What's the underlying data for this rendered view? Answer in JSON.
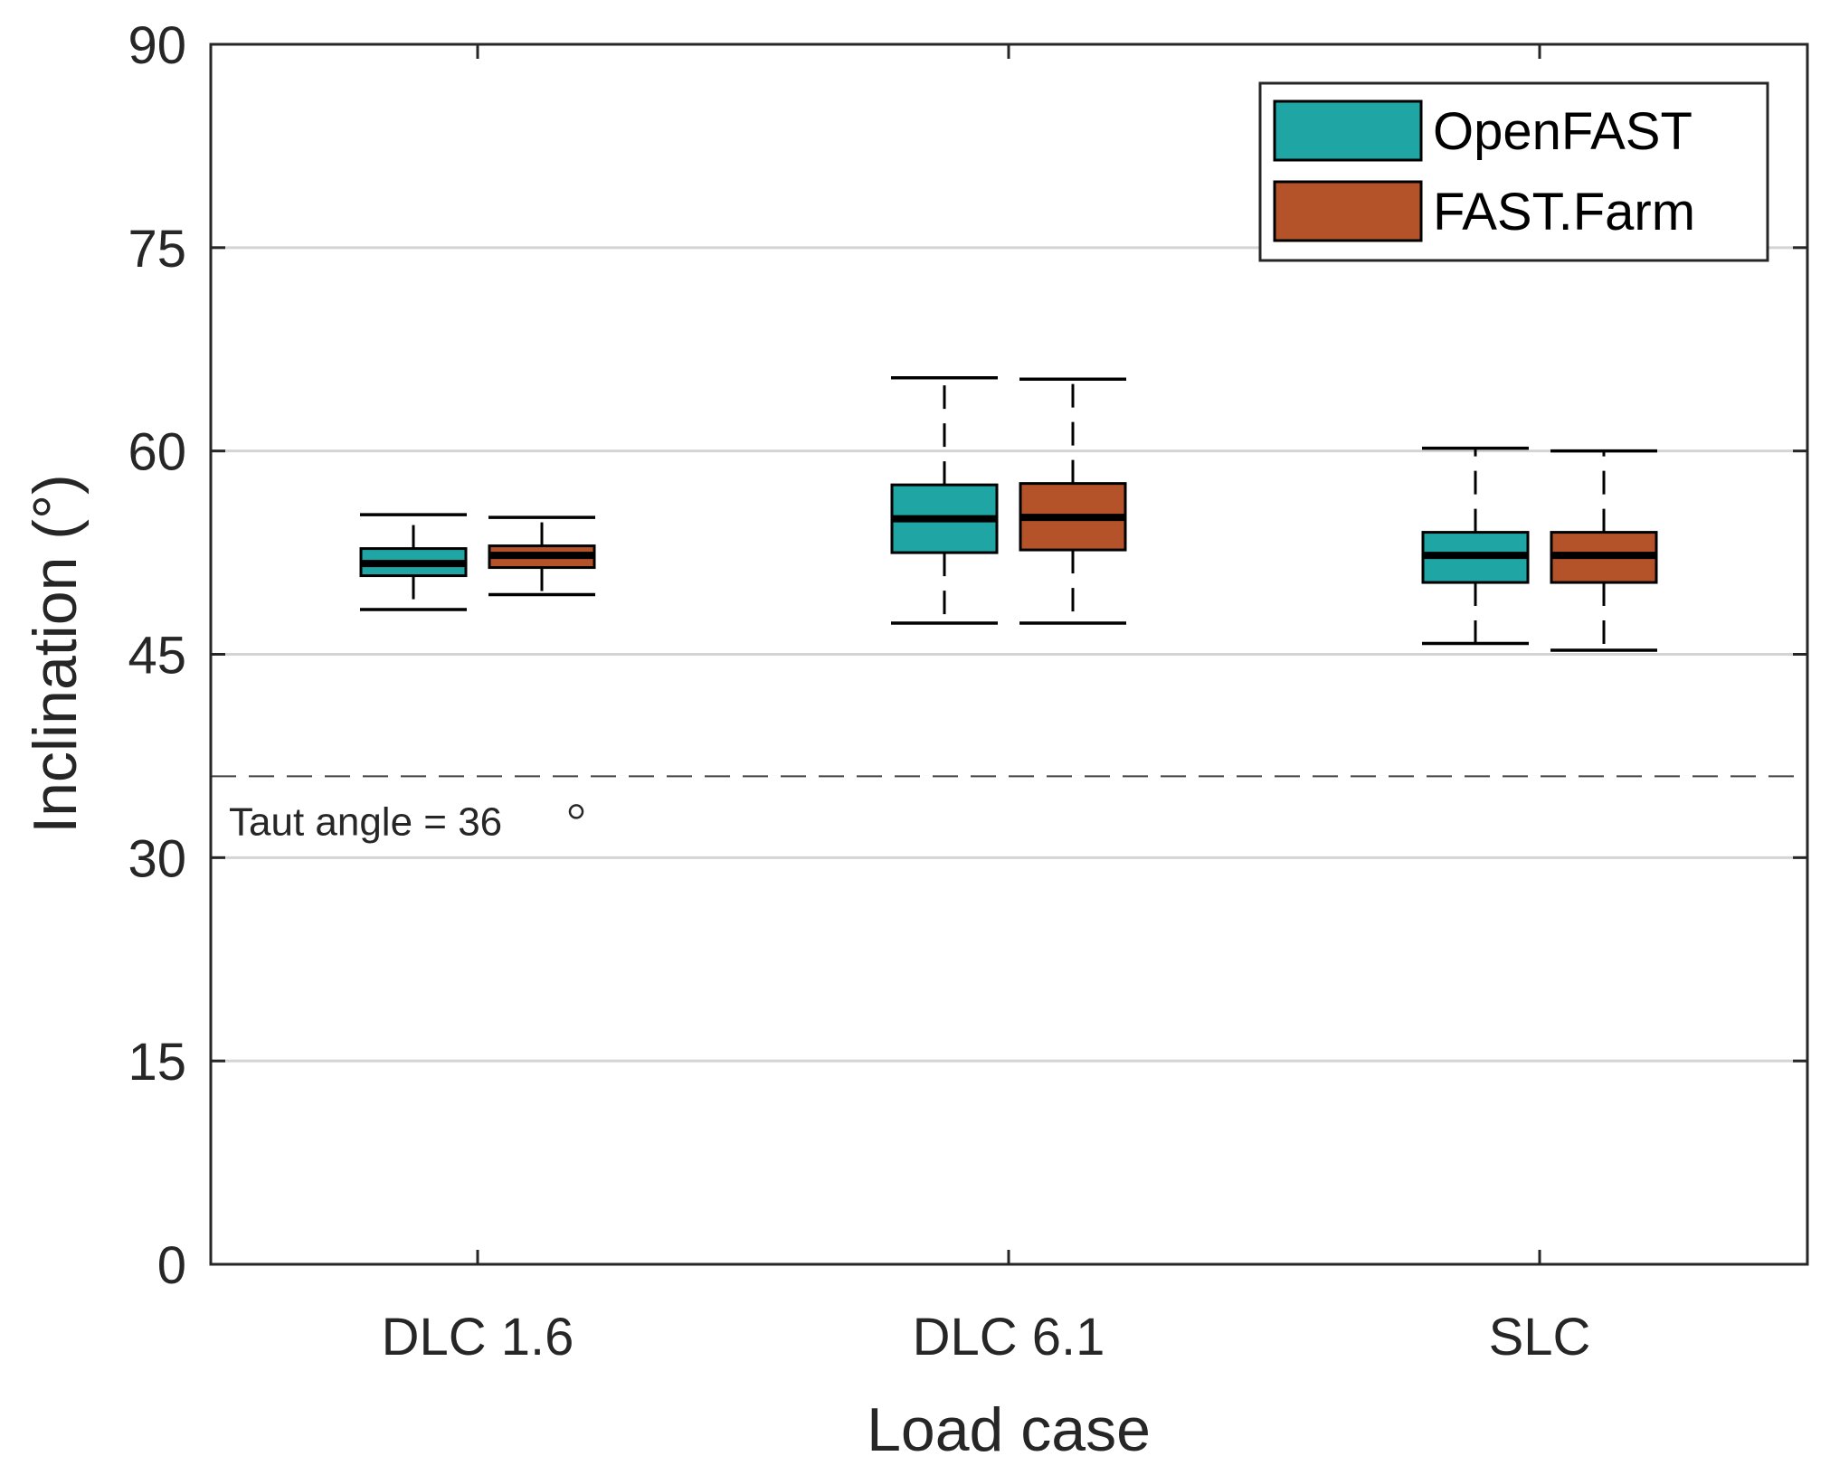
{
  "chart_data": {
    "type": "box",
    "xlabel": "Load case",
    "ylabel": "Inclination (°)",
    "ylim": [
      0,
      90
    ],
    "yticks": [
      0,
      15,
      30,
      45,
      60,
      75,
      90
    ],
    "grid": "horizontal",
    "legend_position": "top-right",
    "categories": [
      "DLC 1.6",
      "DLC 6.1",
      "SLC"
    ],
    "series": [
      {
        "name": "OpenFAST",
        "color": "#20a5a5",
        "boxes": [
          {
            "min": 48.3,
            "q1": 50.8,
            "median": 51.7,
            "q3": 52.8,
            "max": 55.3
          },
          {
            "min": 47.3,
            "q1": 52.5,
            "median": 55.0,
            "q3": 57.5,
            "max": 65.4
          },
          {
            "min": 45.8,
            "q1": 50.3,
            "median": 52.3,
            "q3": 54.0,
            "max": 60.2
          }
        ]
      },
      {
        "name": "FAST.Farm",
        "color": "#b4532a",
        "boxes": [
          {
            "min": 49.4,
            "q1": 51.4,
            "median": 52.3,
            "q3": 53.0,
            "max": 55.1
          },
          {
            "min": 47.3,
            "q1": 52.7,
            "median": 55.1,
            "q3": 57.6,
            "max": 65.3
          },
          {
            "min": 45.3,
            "q1": 50.3,
            "median": 52.3,
            "q3": 54.0,
            "max": 60.0
          }
        ]
      }
    ],
    "reference_line": {
      "y": 36,
      "style": "dashed",
      "label": "Taut angle = 36"
    }
  }
}
